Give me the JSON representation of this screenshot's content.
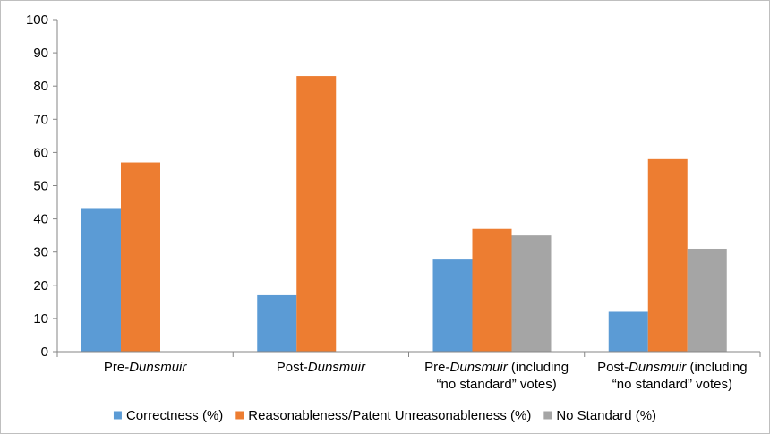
{
  "chart_data": {
    "type": "bar",
    "title": "",
    "xlabel": "",
    "ylabel": "",
    "ylim": [
      0,
      100
    ],
    "yticks": [
      0,
      10,
      20,
      30,
      40,
      50,
      60,
      70,
      80,
      90,
      100
    ],
    "grid": false,
    "legend_position": "bottom",
    "categories": [
      {
        "lines": [
          [
            {
              "text": "Pre-",
              "italic": false
            },
            {
              "text": "Dunsmuir",
              "italic": true
            }
          ]
        ]
      },
      {
        "lines": [
          [
            {
              "text": "Post-",
              "italic": false
            },
            {
              "text": "Dunsmuir",
              "italic": true
            }
          ]
        ]
      },
      {
        "lines": [
          [
            {
              "text": "Pre-",
              "italic": false
            },
            {
              "text": "Dunsmuir",
              "italic": true
            },
            {
              "text": " (including",
              "italic": false
            }
          ],
          [
            {
              "text": "“no standard” votes)",
              "italic": false
            }
          ]
        ]
      },
      {
        "lines": [
          [
            {
              "text": "Post-",
              "italic": false
            },
            {
              "text": "Dunsmuir",
              "italic": true
            },
            {
              "text": " (including",
              "italic": false
            }
          ],
          [
            {
              "text": "“no standard” votes)",
              "italic": false
            }
          ]
        ]
      }
    ],
    "series": [
      {
        "name": "Correctness (%)",
        "color": "#5b9bd5",
        "values": [
          43,
          17,
          28,
          12
        ]
      },
      {
        "name": "Reasonableness/Patent Unreasonableness (%)",
        "color": "#ed7d31",
        "values": [
          57,
          83,
          37,
          58
        ]
      },
      {
        "name": "No Standard (%)",
        "color": "#a5a5a5",
        "values": [
          null,
          null,
          35,
          31
        ]
      }
    ]
  }
}
